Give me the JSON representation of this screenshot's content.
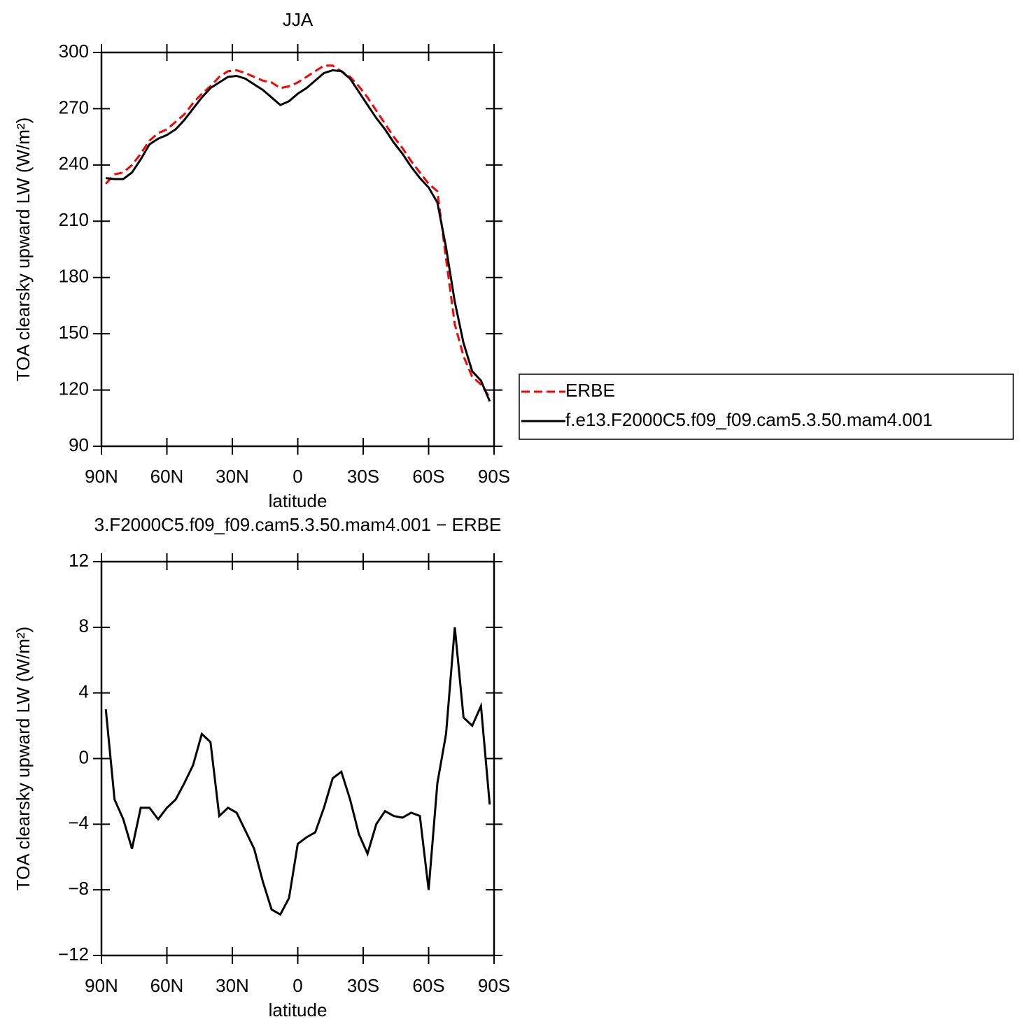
{
  "chart_data": [
    {
      "type": "line",
      "title": "JJA",
      "xlabel": "latitude",
      "ylabel": "TOA clearsky upward LW (W/m²)",
      "x": [
        88,
        84,
        80,
        76,
        72,
        68,
        64,
        60,
        56,
        52,
        48,
        44,
        40,
        36,
        32,
        28,
        24,
        20,
        16,
        12,
        8,
        4,
        0,
        -4,
        -8,
        -12,
        -16,
        -20,
        -24,
        -28,
        -32,
        -36,
        -40,
        -44,
        -48,
        -52,
        -56,
        -60,
        -64,
        -68,
        -72,
        -76,
        -80,
        -84,
        -88
      ],
      "xlim": [
        90,
        -90
      ],
      "xticks": [
        {
          "value": 90,
          "label": "90N"
        },
        {
          "value": 60,
          "label": "60N"
        },
        {
          "value": 30,
          "label": "30N"
        },
        0,
        {
          "value": -30,
          "label": "30S"
        },
        {
          "value": -60,
          "label": "60S"
        },
        {
          "value": -90,
          "label": "90S"
        }
      ],
      "ylim": [
        90,
        300
      ],
      "yticks": [
        90,
        120,
        150,
        180,
        210,
        240,
        270,
        300
      ],
      "legend": "right",
      "series": [
        {
          "name": "ERBE",
          "color": "#ff0000",
          "dashed": true,
          "values": [
            230,
            235,
            236,
            240,
            246,
            253,
            257,
            259,
            263,
            267,
            273,
            278,
            282,
            287,
            290,
            290.5,
            289,
            287,
            285,
            284,
            281,
            282,
            284,
            287,
            290,
            293,
            293,
            290,
            287,
            282,
            276,
            269,
            262,
            255,
            249,
            242,
            236,
            230,
            226,
            190,
            155,
            138,
            127,
            123,
            116
          ]
        },
        {
          "name": "f.e13.F2000C5.f09_f09.cam5.3.50.mam4.001",
          "color": "#000000",
          "dashed": false,
          "values": [
            233,
            232.5,
            232.5,
            236,
            243,
            251,
            254,
            256,
            259,
            264,
            270,
            276,
            281,
            284,
            287,
            287.5,
            286,
            283,
            280,
            276,
            272,
            274,
            278,
            281,
            285,
            289,
            290.5,
            290,
            286,
            279,
            272,
            265,
            259,
            252,
            246,
            239,
            233,
            228,
            220,
            196,
            167,
            145,
            130,
            125,
            114
          ]
        }
      ]
    },
    {
      "type": "line",
      "title": "3.F2000C5.f09_f09.cam5.3.50.mam4.001 − ERBE",
      "xlabel": "latitude",
      "ylabel": "TOA clearsky upward LW (W/m²)",
      "x": [
        88,
        84,
        80,
        76,
        72,
        68,
        64,
        60,
        56,
        52,
        48,
        44,
        40,
        36,
        32,
        28,
        24,
        20,
        16,
        12,
        8,
        4,
        0,
        -4,
        -8,
        -12,
        -16,
        -20,
        -24,
        -28,
        -32,
        -36,
        -40,
        -44,
        -48,
        -52,
        -56,
        -60,
        -64,
        -68,
        -72,
        -76,
        -80,
        -84,
        -88
      ],
      "xlim": [
        90,
        -90
      ],
      "xticks": [
        {
          "value": 90,
          "label": "90N"
        },
        {
          "value": 60,
          "label": "60N"
        },
        {
          "value": 30,
          "label": "30N"
        },
        0,
        {
          "value": -30,
          "label": "30S"
        },
        {
          "value": -60,
          "label": "60S"
        },
        {
          "value": -90,
          "label": "90S"
        }
      ],
      "ylim": [
        -12,
        12
      ],
      "yticks": [
        {
          "value": -12,
          "label": "−12"
        },
        {
          "value": -8,
          "label": "−8"
        },
        {
          "value": -4,
          "label": "−4"
        },
        0,
        4,
        8,
        12
      ],
      "color": "#000000",
      "values": [
        3,
        -2.5,
        -3.7,
        -5.5,
        -3,
        -3,
        -3.7,
        -3,
        -2.5,
        -1.5,
        -0.4,
        1.5,
        1,
        -3.5,
        -3,
        -3.3,
        -4.4,
        -5.5,
        -7.5,
        -9.2,
        -9.5,
        -8.5,
        -5.2,
        -4.8,
        -4.5,
        -3,
        -1.2,
        -0.8,
        -2.5,
        -4.6,
        -5.8,
        -4,
        -3.2,
        -3.5,
        -3.6,
        -3.3,
        -3.5,
        -8,
        -1.5,
        1.5,
        8,
        2.5,
        2,
        3.2,
        -2.8
      ]
    }
  ]
}
